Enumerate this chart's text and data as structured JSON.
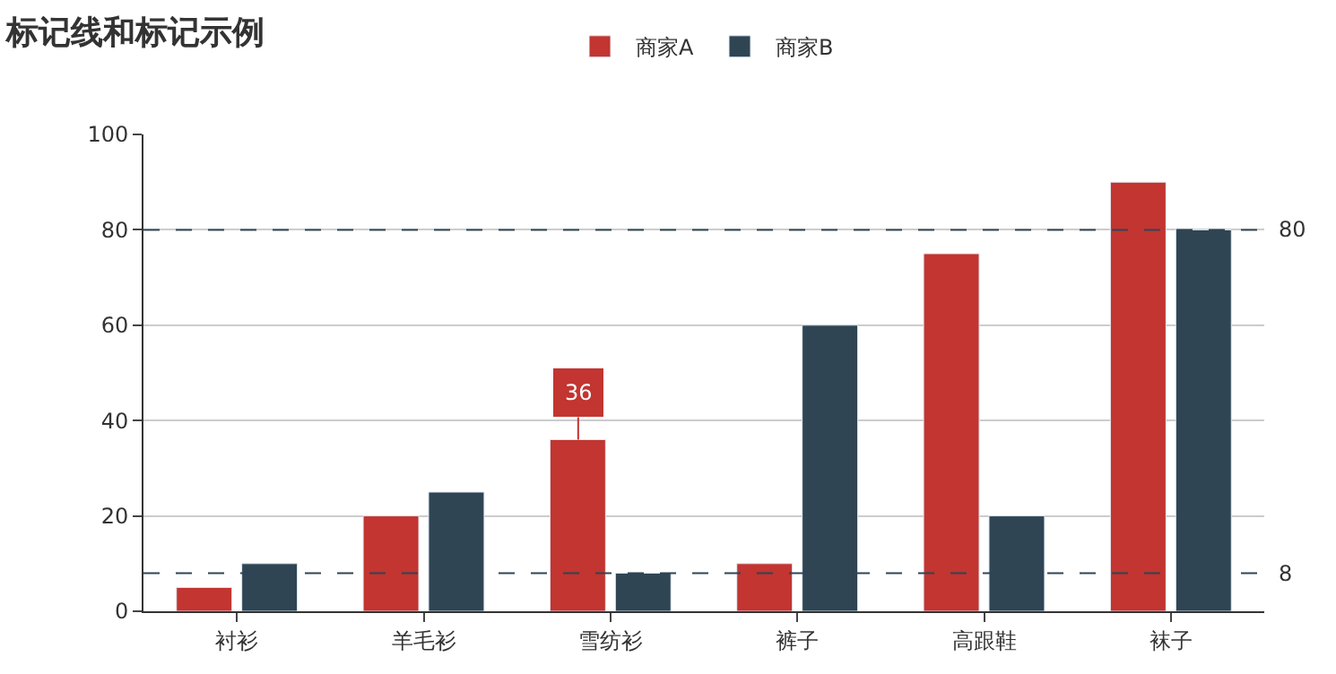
{
  "chart_data": {
    "type": "bar",
    "title": "标记线和标记示例",
    "categories": [
      "衬衫",
      "羊毛衫",
      "雪纺衫",
      "裤子",
      "高跟鞋",
      "袜子"
    ],
    "series": [
      {
        "name": "商家A",
        "color": "#c23531",
        "values": [
          5,
          20,
          36,
          10,
          75,
          90
        ]
      },
      {
        "name": "商家B",
        "color": "#2f4554",
        "values": [
          10,
          25,
          8,
          60,
          20,
          80
        ]
      }
    ],
    "ylim": [
      0,
      100
    ],
    "yticks": [
      0,
      20,
      40,
      60,
      80,
      100
    ],
    "grid": "y",
    "legend": "top",
    "ref_lines": [
      {
        "axis": "y",
        "value": 80,
        "label": "80",
        "color": "#2f4554",
        "line_style": "dashed"
      },
      {
        "axis": "y",
        "value": 8,
        "label": "8",
        "color": "#2f4554",
        "line_style": "dashed"
      }
    ],
    "annotations": [
      {
        "text": "36",
        "x": "雪纺衫",
        "y": 36
      }
    ]
  }
}
